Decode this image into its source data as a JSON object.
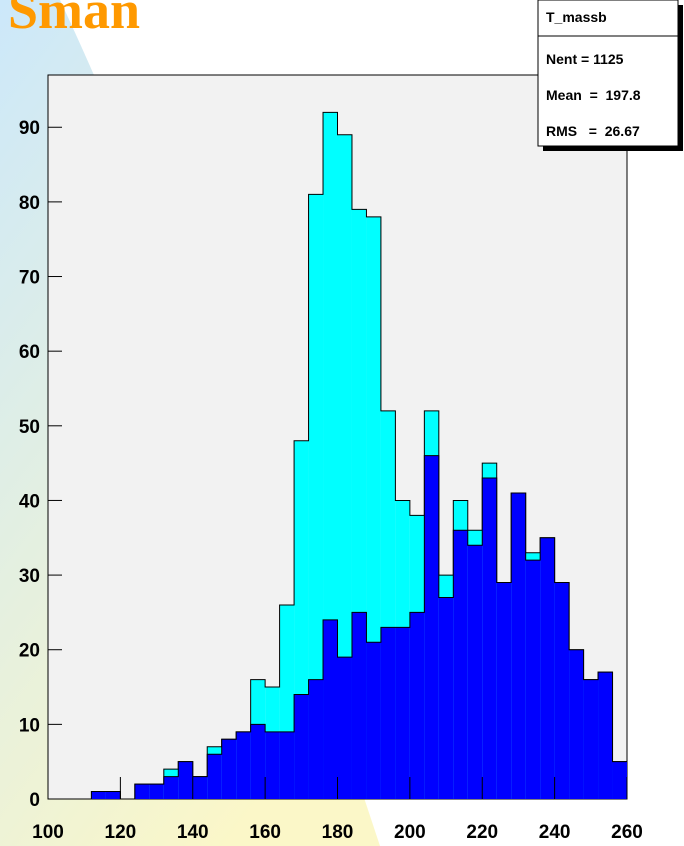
{
  "chart_data": {
    "type": "histogram",
    "title": "Sman",
    "bins": [
      100,
      104,
      108,
      112,
      116,
      120,
      124,
      128,
      132,
      136,
      140,
      144,
      148,
      152,
      156,
      160,
      164,
      168,
      172,
      176,
      180,
      184,
      188,
      192,
      196,
      200,
      204,
      208,
      212,
      216,
      220,
      224,
      228,
      232,
      236,
      240,
      244,
      248,
      252,
      256,
      260
    ],
    "series": [
      {
        "color": "#00ffff",
        "values": [
          0,
          0,
          0,
          1,
          1,
          0,
          2,
          2,
          4,
          5,
          3,
          7,
          8,
          9,
          16,
          15,
          26,
          48,
          81,
          92,
          89,
          79,
          78,
          52,
          40,
          38,
          52,
          30,
          40,
          36,
          45,
          29,
          41,
          33,
          35,
          29,
          20,
          16,
          17,
          5
        ]
      },
      {
        "color": "#0000ff",
        "values": [
          0,
          0,
          0,
          1,
          1,
          0,
          2,
          2,
          3,
          5,
          3,
          6,
          8,
          9,
          10,
          9,
          9,
          14,
          16,
          24,
          19,
          25,
          21,
          23,
          23,
          25,
          46,
          27,
          36,
          34,
          43,
          29,
          41,
          32,
          35,
          29,
          20,
          16,
          17,
          5
        ]
      }
    ],
    "xlim": [
      100,
      260
    ],
    "xticks": [
      100,
      120,
      140,
      160,
      180,
      200,
      220,
      240,
      260
    ],
    "ylim": [
      0,
      97
    ],
    "yticks": [
      0,
      10,
      20,
      30,
      40,
      50,
      60,
      70,
      80,
      90
    ],
    "stats": {
      "name": "T_massb",
      "entries": "Nent = 1125",
      "mean": "Mean  =  197.8",
      "rms": "RMS   =  26.67"
    }
  }
}
